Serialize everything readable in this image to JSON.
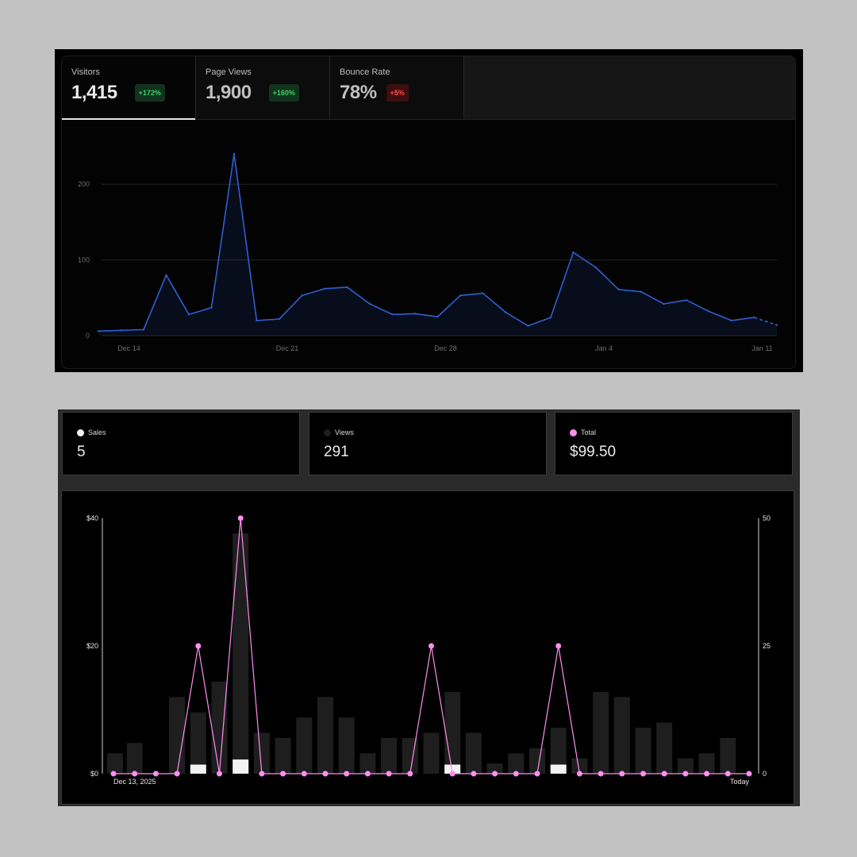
{
  "analytics": {
    "tabs": [
      {
        "label": "Visitors",
        "value": "1,415",
        "badge": "+172%",
        "trend": "up"
      },
      {
        "label": "Page Views",
        "value": "1,900",
        "badge": "+160%",
        "trend": "up"
      },
      {
        "label": "Bounce Rate",
        "value": "78%",
        "badge": "+5%",
        "trend": "down"
      }
    ],
    "active_tab": "Visitors"
  },
  "sales": {
    "kpis": [
      {
        "label": "Sales",
        "value": "5",
        "color": "#f2f2f2"
      },
      {
        "label": "Views",
        "value": "291",
        "color": "#1e1e1e"
      },
      {
        "label": "Total",
        "value": "$99.50",
        "color": "#ff8ef0"
      }
    ]
  },
  "chart_data": [
    {
      "type": "area",
      "x_tick_labels": [
        "Dec 14",
        "Dec 21",
        "Dec 28",
        "Jan 4",
        "Jan 11"
      ],
      "y_ticks": [
        0,
        100,
        200
      ],
      "ylim": [
        0,
        240
      ],
      "grid": true,
      "line_color": "#2f5fd0",
      "series": [
        {
          "values": [
            6,
            7,
            8,
            80,
            28,
            37,
            240,
            20,
            22,
            53,
            62,
            64,
            42,
            28,
            29,
            25,
            53,
            56,
            31,
            13,
            24,
            110,
            90,
            61,
            58,
            42,
            47,
            32,
            20,
            24,
            14
          ]
        }
      ],
      "last_segment_dashed": true
    },
    {
      "type": "bar",
      "x_tick_labels": [
        "Dec 13, 2025",
        "Today"
      ],
      "y_left_ticks": [
        "$0",
        "$20",
        "$40"
      ],
      "y_left_lim": [
        0,
        40
      ],
      "y_right_ticks": [
        "0",
        "25",
        "50"
      ],
      "y_right_lim": [
        0,
        50
      ],
      "series": [
        {
          "values": [
            4,
            6,
            0,
            15,
            12,
            18,
            47,
            8,
            7,
            11,
            15,
            11,
            4,
            7,
            7,
            8,
            16,
            8,
            2,
            4,
            5,
            9,
            3,
            16,
            15,
            9,
            10,
            3,
            4,
            7,
            0
          ],
          "color": "#1e1e1e",
          "axis": "right"
        },
        {
          "values": [
            0,
            0,
            0,
            0,
            1,
            0,
            2,
            0,
            0,
            0,
            0,
            0,
            0,
            0,
            0,
            0,
            1,
            0,
            0,
            0,
            0,
            1,
            0,
            0,
            0,
            0,
            0,
            0,
            0,
            0,
            0
          ],
          "color": "#f2f2f2",
          "axis": "right"
        },
        {
          "values": [
            0,
            0,
            0,
            0,
            20,
            0,
            40,
            0,
            0,
            0,
            0,
            0,
            0,
            0,
            0,
            20,
            0,
            0,
            0,
            0,
            0,
            20,
            0,
            0,
            0,
            0,
            0,
            0,
            0,
            0,
            0
          ],
          "color": "#ff8ef0",
          "axis": "left",
          "type": "line"
        }
      ]
    }
  ]
}
